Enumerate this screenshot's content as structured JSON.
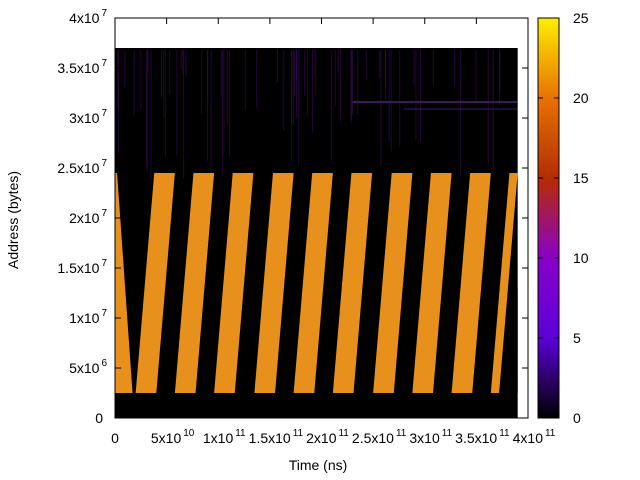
{
  "chart_data": {
    "type": "heatmap",
    "title": "",
    "xlabel": "Time (ns)",
    "ylabel": "Address (bytes)",
    "xlim": [
      0,
      400000000000
    ],
    "ylim": [
      0,
      40000000
    ],
    "x_ticks": [
      {
        "v": 0,
        "m": "0",
        "e": ""
      },
      {
        "v": 50000000000,
        "m": "5x10",
        "e": "10"
      },
      {
        "v": 100000000000,
        "m": "1x10",
        "e": "11"
      },
      {
        "v": 150000000000,
        "m": "1.5x10",
        "e": "11"
      },
      {
        "v": 200000000000,
        "m": "2x10",
        "e": "11"
      },
      {
        "v": 250000000000,
        "m": "2.5x10",
        "e": "11"
      },
      {
        "v": 300000000000,
        "m": "3x10",
        "e": "11"
      },
      {
        "v": 350000000000,
        "m": "3.5x10",
        "e": "11"
      },
      {
        "v": 400000000000,
        "m": "4x10",
        "e": "11"
      }
    ],
    "y_ticks": [
      {
        "v": 0,
        "m": "0",
        "e": ""
      },
      {
        "v": 5000000,
        "m": "5x10",
        "e": "6"
      },
      {
        "v": 10000000,
        "m": "1x10",
        "e": "7"
      },
      {
        "v": 15000000,
        "m": "1.5x10",
        "e": "7"
      },
      {
        "v": 20000000,
        "m": "2x10",
        "e": "7"
      },
      {
        "v": 25000000,
        "m": "2.5x10",
        "e": "7"
      },
      {
        "v": 30000000,
        "m": "3x10",
        "e": "7"
      },
      {
        "v": 35000000,
        "m": "3.5x10",
        "e": "7"
      },
      {
        "v": 40000000,
        "m": "4x10",
        "e": "7"
      }
    ],
    "data_region": {
      "x": [
        0,
        390000000000
      ],
      "y": [
        0,
        37000000
      ],
      "background_value": 0
    },
    "bands": [
      {
        "x0_bottom": 0,
        "x0_top": -15000000000,
        "x1_top": 2000000000,
        "y_bottom": 2500000,
        "y_top": 24500000,
        "value": 20,
        "note": "band clipped at x=0"
      },
      {
        "x0_bottom": 20000000000,
        "x0_top": 38000000000,
        "x1_top": 58000000000,
        "y_bottom": 2500000,
        "y_top": 24500000,
        "value": 20
      },
      {
        "x0_bottom": 58000000000,
        "x0_top": 76000000000,
        "x1_top": 96000000000,
        "y_bottom": 2500000,
        "y_top": 24500000,
        "value": 20
      },
      {
        "x0_bottom": 96000000000,
        "x0_top": 114000000000,
        "x1_top": 134000000000,
        "y_bottom": 2500000,
        "y_top": 24500000,
        "value": 20
      },
      {
        "x0_bottom": 135000000000,
        "x0_top": 153000000000,
        "x1_top": 173000000000,
        "y_bottom": 2500000,
        "y_top": 24500000,
        "value": 20
      },
      {
        "x0_bottom": 173000000000,
        "x0_top": 191000000000,
        "x1_top": 211000000000,
        "y_bottom": 2500000,
        "y_top": 24500000,
        "value": 20
      },
      {
        "x0_bottom": 211000000000,
        "x0_top": 229000000000,
        "x1_top": 249000000000,
        "y_bottom": 2500000,
        "y_top": 24500000,
        "value": 20
      },
      {
        "x0_bottom": 250000000000,
        "x0_top": 268000000000,
        "x1_top": 288000000000,
        "y_bottom": 2500000,
        "y_top": 24500000,
        "value": 20
      },
      {
        "x0_bottom": 288000000000,
        "x0_top": 306000000000,
        "x1_top": 326000000000,
        "y_bottom": 2500000,
        "y_top": 24500000,
        "value": 20
      },
      {
        "x0_bottom": 326000000000,
        "x0_top": 344000000000,
        "x1_top": 364000000000,
        "y_bottom": 2500000,
        "y_top": 24500000,
        "value": 20
      },
      {
        "x0_bottom": 364000000000,
        "x0_top": 382000000000,
        "x1_top": 390000000000,
        "y_bottom": 2500000,
        "y_top": 24500000,
        "value": 20,
        "note": "band clipped at x=3.9e11; lower part ends near 1.3e7 at right edge"
      }
    ],
    "colorbar": {
      "range": [
        0,
        25
      ],
      "ticks": [
        0,
        5,
        10,
        15,
        20,
        25
      ],
      "colors": [
        {
          "v": 0,
          "c": "#000000"
        },
        {
          "v": 5,
          "c": "#5b00d8"
        },
        {
          "v": 10,
          "c": "#8a00c8"
        },
        {
          "v": 15,
          "c": "#b52d00"
        },
        {
          "v": 20,
          "c": "#e87200"
        },
        {
          "v": 25,
          "c": "#ffee00"
        }
      ]
    },
    "band_color": "#e8901c",
    "background_color": "#000000",
    "grid": false
  }
}
